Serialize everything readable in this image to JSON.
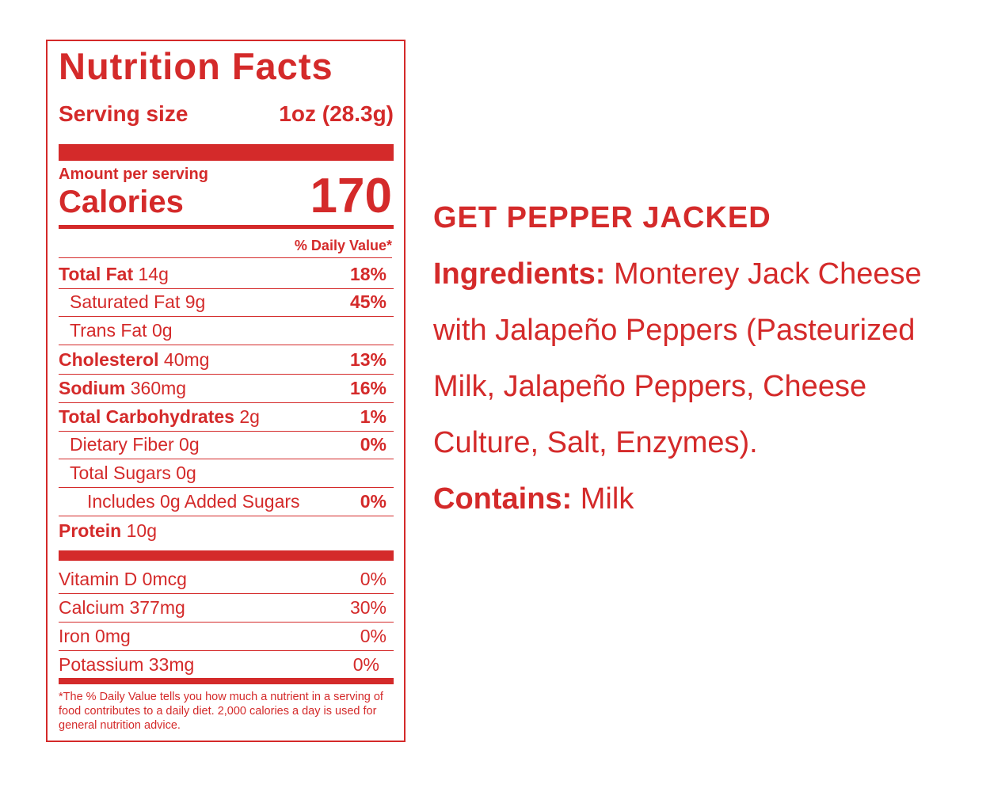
{
  "label": {
    "title": "Nutrition Facts",
    "serving_size": {
      "label": "Serving size",
      "value": "1oz (28.3g)"
    },
    "amount_per_serving": "Amount per serving",
    "calories": {
      "label": "Calories",
      "value": "170"
    },
    "daily_value_header": "% Daily Value*",
    "nutrients": [
      {
        "name": "Total Fat",
        "amount": "14g",
        "dv": "18%"
      },
      {
        "name": "Saturated Fat",
        "amount": "9g",
        "dv": "45%"
      },
      {
        "name": "Trans Fat",
        "amount": "0g"
      },
      {
        "name": "Cholesterol",
        "amount": "40mg",
        "dv": "13%"
      },
      {
        "name": "Sodium",
        "amount": "360mg",
        "dv": "16%"
      },
      {
        "name": "Total Carbohydrates",
        "amount": "2g",
        "dv": "1%"
      },
      {
        "name": "Dietary Fiber",
        "amount": "0g",
        "dv": "0%"
      },
      {
        "name": "Total Sugars",
        "amount": "0g"
      },
      {
        "name": "Includes 0g Added Sugars",
        "dv": "0%"
      },
      {
        "name": "Protein",
        "amount": "10g"
      }
    ],
    "vitamins": [
      {
        "name": "Vitamin D",
        "amount": "0mcg",
        "dv": "0%"
      },
      {
        "name": "Calcium",
        "amount": "377mg",
        "dv": "30%"
      },
      {
        "name": "Iron",
        "amount": "0mg",
        "dv": "0%"
      },
      {
        "name": "Potassium",
        "amount": "33mg",
        "dv": "0%"
      }
    ],
    "footnote": "*The % Daily Value tells you how much a nutrient in a serving of food contributes to a daily diet. 2,000 calories a day is used for general nutrition advice."
  },
  "info": {
    "heading": "GET PEPPER JACKED",
    "ingredients_label": "Ingredients:",
    "ingredients": "Monterey Jack Cheese with Jalapeño Peppers (Pasteurized Milk, Jalapeño Peppers, Cheese Culture, Salt, Enzymes).",
    "contains_label": "Contains:",
    "contains": "Milk"
  }
}
